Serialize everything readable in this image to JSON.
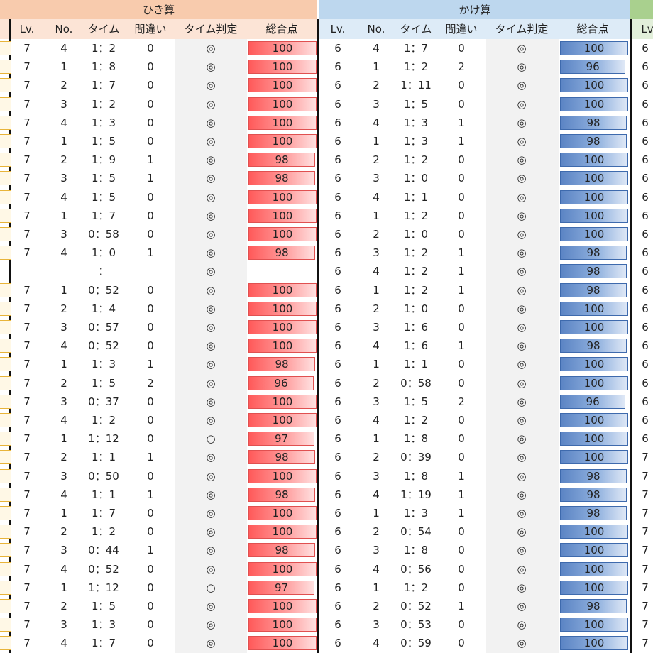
{
  "sections": {
    "subtraction": {
      "title": "ひき算"
    },
    "multiplication": {
      "title": "かけ算"
    }
  },
  "columns_sub": [
    "Lv.",
    "No.",
    "タイム",
    "間違い",
    "タイム判定",
    "総合点"
  ],
  "columns_mul": [
    "Lv.",
    "No.",
    "タイム",
    "間違い",
    "タイム判定",
    "総合点"
  ],
  "partial_col": "Lv",
  "colors": {
    "sub_header": "#f8cbad",
    "mul_header": "#bdd7ee",
    "right_header": "#a9d08e",
    "red_bar": "#ff6161",
    "blue_bar": "#5b84c4",
    "judge_bg": "#f2f2f2"
  },
  "right_edge": [
    "6",
    "6",
    "6",
    "6",
    "6",
    "6",
    "6",
    "6",
    "6",
    "6",
    "6",
    "6",
    "6",
    "6",
    "6",
    "6",
    "6",
    "6",
    "6",
    "6",
    "6",
    "6",
    "7",
    "7",
    "7",
    "7",
    "7",
    "7",
    "7",
    "7",
    "7",
    "7",
    "7"
  ],
  "rows": [
    {
      "s": [
        "7",
        "4",
        "1：2",
        "0",
        "◎",
        "100"
      ],
      "m": [
        "6",
        "4",
        "1：7",
        "0",
        "◎",
        "100"
      ]
    },
    {
      "s": [
        "7",
        "1",
        "1：8",
        "0",
        "◎",
        "100"
      ],
      "m": [
        "6",
        "1",
        "1：2",
        "2",
        "◎",
        "96"
      ]
    },
    {
      "s": [
        "7",
        "2",
        "1：7",
        "0",
        "◎",
        "100"
      ],
      "m": [
        "6",
        "2",
        "1：11",
        "0",
        "◎",
        "100"
      ]
    },
    {
      "s": [
        "7",
        "3",
        "1：2",
        "0",
        "◎",
        "100"
      ],
      "m": [
        "6",
        "3",
        "1：5",
        "0",
        "◎",
        "100"
      ]
    },
    {
      "s": [
        "7",
        "4",
        "1：3",
        "0",
        "◎",
        "100"
      ],
      "m": [
        "6",
        "4",
        "1：3",
        "1",
        "◎",
        "98"
      ]
    },
    {
      "s": [
        "7",
        "1",
        "1：5",
        "0",
        "◎",
        "100"
      ],
      "m": [
        "6",
        "1",
        "1：3",
        "1",
        "◎",
        "98"
      ]
    },
    {
      "s": [
        "7",
        "2",
        "1：9",
        "1",
        "◎",
        "98"
      ],
      "m": [
        "6",
        "2",
        "1：2",
        "0",
        "◎",
        "100"
      ]
    },
    {
      "s": [
        "7",
        "3",
        "1：5",
        "1",
        "◎",
        "98"
      ],
      "m": [
        "6",
        "3",
        "1：0",
        "0",
        "◎",
        "100"
      ]
    },
    {
      "s": [
        "7",
        "4",
        "1：5",
        "0",
        "◎",
        "100"
      ],
      "m": [
        "6",
        "4",
        "1：1",
        "0",
        "◎",
        "100"
      ]
    },
    {
      "s": [
        "7",
        "1",
        "1：7",
        "0",
        "◎",
        "100"
      ],
      "m": [
        "6",
        "1",
        "1：2",
        "0",
        "◎",
        "100"
      ]
    },
    {
      "s": [
        "7",
        "3",
        "0：58",
        "0",
        "◎",
        "100"
      ],
      "m": [
        "6",
        "2",
        "1：0",
        "0",
        "◎",
        "100"
      ]
    },
    {
      "s": [
        "7",
        "4",
        "1：0",
        "1",
        "◎",
        "98"
      ],
      "m": [
        "6",
        "3",
        "1：2",
        "1",
        "◎",
        "98"
      ]
    },
    {
      "s": [
        "",
        "",
        "：",
        "",
        "◎",
        ""
      ],
      "m": [
        "6",
        "4",
        "1：2",
        "1",
        "◎",
        "98"
      ]
    },
    {
      "s": [
        "7",
        "1",
        "0：52",
        "0",
        "◎",
        "100"
      ],
      "m": [
        "6",
        "1",
        "1：2",
        "1",
        "◎",
        "98"
      ]
    },
    {
      "s": [
        "7",
        "2",
        "1：4",
        "0",
        "◎",
        "100"
      ],
      "m": [
        "6",
        "2",
        "1：0",
        "0",
        "◎",
        "100"
      ]
    },
    {
      "s": [
        "7",
        "3",
        "0：57",
        "0",
        "◎",
        "100"
      ],
      "m": [
        "6",
        "3",
        "1：6",
        "0",
        "◎",
        "100"
      ]
    },
    {
      "s": [
        "7",
        "4",
        "0：52",
        "0",
        "◎",
        "100"
      ],
      "m": [
        "6",
        "4",
        "1：6",
        "1",
        "◎",
        "98"
      ]
    },
    {
      "s": [
        "7",
        "1",
        "1：3",
        "1",
        "◎",
        "98"
      ],
      "m": [
        "6",
        "1",
        "1：1",
        "0",
        "◎",
        "100"
      ]
    },
    {
      "s": [
        "7",
        "2",
        "1：5",
        "2",
        "◎",
        "96"
      ],
      "m": [
        "6",
        "2",
        "0：58",
        "0",
        "◎",
        "100"
      ]
    },
    {
      "s": [
        "7",
        "3",
        "0：37",
        "0",
        "◎",
        "100"
      ],
      "m": [
        "6",
        "3",
        "1：5",
        "2",
        "◎",
        "96"
      ]
    },
    {
      "s": [
        "7",
        "4",
        "1：2",
        "0",
        "◎",
        "100"
      ],
      "m": [
        "6",
        "4",
        "1：2",
        "0",
        "◎",
        "100"
      ]
    },
    {
      "s": [
        "7",
        "1",
        "1：12",
        "0",
        "○",
        "97"
      ],
      "m": [
        "6",
        "1",
        "1：8",
        "0",
        "◎",
        "100"
      ]
    },
    {
      "s": [
        "7",
        "2",
        "1：1",
        "1",
        "◎",
        "98"
      ],
      "m": [
        "6",
        "2",
        "0：39",
        "0",
        "◎",
        "100"
      ]
    },
    {
      "s": [
        "7",
        "3",
        "0：50",
        "0",
        "◎",
        "100"
      ],
      "m": [
        "6",
        "3",
        "1：8",
        "1",
        "◎",
        "98"
      ]
    },
    {
      "s": [
        "7",
        "4",
        "1：1",
        "1",
        "◎",
        "98"
      ],
      "m": [
        "6",
        "4",
        "1：19",
        "1",
        "◎",
        "98"
      ]
    },
    {
      "s": [
        "7",
        "1",
        "1：7",
        "0",
        "◎",
        "100"
      ],
      "m": [
        "6",
        "1",
        "1：3",
        "1",
        "◎",
        "98"
      ]
    },
    {
      "s": [
        "7",
        "2",
        "1：2",
        "0",
        "◎",
        "100"
      ],
      "m": [
        "6",
        "2",
        "0：54",
        "0",
        "◎",
        "100"
      ]
    },
    {
      "s": [
        "7",
        "3",
        "0：44",
        "1",
        "◎",
        "98"
      ],
      "m": [
        "6",
        "3",
        "1：8",
        "0",
        "◎",
        "100"
      ]
    },
    {
      "s": [
        "7",
        "4",
        "0：52",
        "0",
        "◎",
        "100"
      ],
      "m": [
        "6",
        "4",
        "0：56",
        "0",
        "◎",
        "100"
      ]
    },
    {
      "s": [
        "7",
        "1",
        "1：12",
        "0",
        "○",
        "97"
      ],
      "m": [
        "6",
        "1",
        "1：2",
        "0",
        "◎",
        "100"
      ]
    },
    {
      "s": [
        "7",
        "2",
        "1：5",
        "0",
        "◎",
        "100"
      ],
      "m": [
        "6",
        "2",
        "0：52",
        "1",
        "◎",
        "98"
      ]
    },
    {
      "s": [
        "7",
        "3",
        "1：3",
        "0",
        "◎",
        "100"
      ],
      "m": [
        "6",
        "3",
        "0：53",
        "0",
        "◎",
        "100"
      ]
    },
    {
      "s": [
        "7",
        "4",
        "1：7",
        "0",
        "◎",
        "100"
      ],
      "m": [
        "6",
        "4",
        "0：59",
        "0",
        "◎",
        "100"
      ]
    }
  ]
}
